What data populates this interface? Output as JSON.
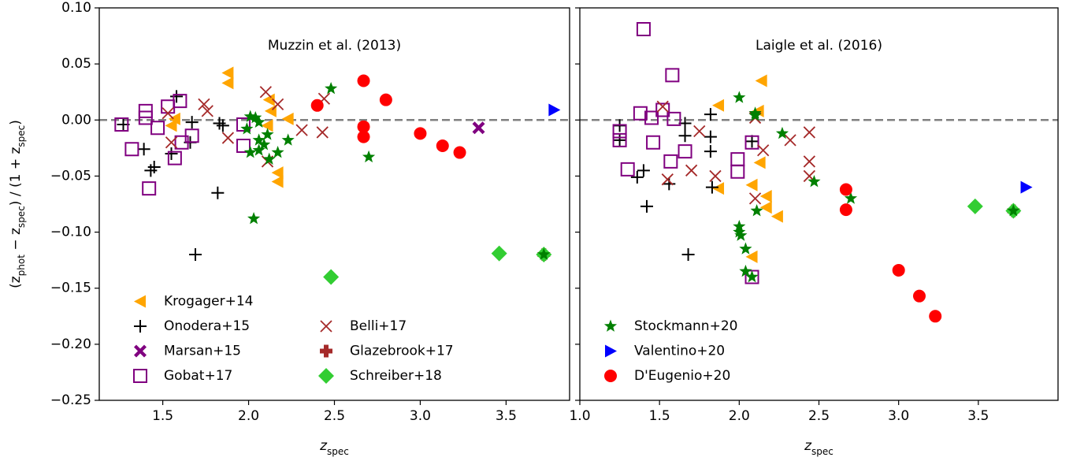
{
  "chart_data": [
    {
      "type": "scatter",
      "title": "Muzzin et al. (2013)",
      "xlabel": [
        "z",
        "spec"
      ],
      "ylabel": [
        "(z",
        "phot",
        " − z",
        "spec",
        ") / (1 + z",
        "spec",
        ")"
      ],
      "xlim": [
        1.13,
        3.87
      ],
      "ylim": [
        -0.25,
        0.1
      ],
      "xticks": [
        {
          "value": 1.5,
          "label": "1.5"
        },
        {
          "value": 2.0,
          "label": "2.0"
        },
        {
          "value": 2.5,
          "label": "2.5"
        },
        {
          "value": 3.0,
          "label": "3.0"
        },
        {
          "value": 3.5,
          "label": "3.5"
        }
      ],
      "yticks": [
        {
          "value": 0.1,
          "label": "0.10"
        },
        {
          "value": 0.05,
          "label": "0.05"
        },
        {
          "value": 0.0,
          "label": "0.00"
        },
        {
          "value": -0.05,
          "label": "−0.05"
        },
        {
          "value": -0.1,
          "label": "−0.10"
        },
        {
          "value": -0.15,
          "label": "−0.15"
        },
        {
          "value": -0.2,
          "label": "−0.20"
        },
        {
          "value": -0.25,
          "label": "−0.25"
        }
      ],
      "hline": 0.0,
      "legend": {
        "loc": "lower left",
        "ncol": 2
      },
      "series": [
        {
          "name": "Krogager+14",
          "color": "#ffa500",
          "marker": "<",
          "filled": true,
          "x": [
            1.88,
            1.88,
            2.12,
            2.13,
            2.17,
            2.17,
            2.23,
            1.57,
            2.11,
            1.55
          ],
          "values": [
            0.042,
            0.033,
            0.018,
            0.008,
            -0.047,
            -0.055,
            0.001,
            0.001,
            -0.005,
            -0.005
          ]
        },
        {
          "name": "Onodera+15",
          "color": "#000000",
          "marker": "+",
          "filled": true,
          "x": [
            1.27,
            1.39,
            1.45,
            1.58,
            1.67,
            1.66,
            1.82,
            1.69,
            1.83,
            1.85,
            1.55,
            1.43
          ],
          "values": [
            -0.004,
            -0.026,
            -0.042,
            0.021,
            -0.002,
            -0.02,
            -0.065,
            -0.12,
            -0.003,
            -0.005,
            -0.03,
            -0.045
          ]
        },
        {
          "name": "Marsan+15",
          "color": "#800080",
          "marker": "X",
          "filled": true,
          "x": [
            3.34
          ],
          "values": [
            -0.007
          ]
        },
        {
          "name": "Gobat+17",
          "color": "#800080",
          "marker": "s",
          "filled": false,
          "x": [
            1.32,
            1.4,
            1.42,
            1.53,
            1.6,
            1.57,
            1.67,
            1.97,
            1.97,
            1.4,
            1.47,
            1.61,
            1.26
          ],
          "values": [
            -0.026,
            0.008,
            -0.061,
            0.012,
            0.017,
            -0.034,
            -0.014,
            -0.004,
            -0.023,
            0.002,
            -0.007,
            -0.02,
            -0.004
          ]
        },
        {
          "name": "Belli+17",
          "color": "#a52a2a",
          "marker": "x",
          "filled": true,
          "x": [
            1.74,
            1.76,
            1.88,
            2.1,
            2.17,
            2.31,
            2.44,
            2.43,
            2.11,
            1.55,
            1.53
          ],
          "values": [
            0.014,
            0.008,
            -0.016,
            0.025,
            0.014,
            -0.009,
            0.019,
            -0.011,
            -0.037,
            -0.02,
            0.006
          ]
        },
        {
          "name": "Glazebrook+17",
          "color": "#a52a2a",
          "marker": "P",
          "filled": true,
          "x": [
            3.72
          ],
          "values": [
            -0.12
          ]
        },
        {
          "name": "Schreiber+18",
          "color": "#32cd32",
          "marker": "D",
          "filled": true,
          "x": [
            2.48,
            3.46,
            3.72
          ],
          "values": [
            -0.14,
            -0.119,
            -0.12
          ]
        },
        {
          "color": "#008000",
          "marker": "*",
          "filled": true,
          "x": [
            2.48,
            2.7,
            2.01,
            2.04,
            2.06,
            1.99,
            2.06,
            2.11,
            2.06,
            2.01,
            2.09,
            2.12,
            2.17,
            2.23,
            2.03,
            3.72
          ],
          "values": [
            0.028,
            -0.033,
            0.003,
            0.002,
            -0.002,
            -0.008,
            -0.018,
            -0.013,
            -0.027,
            -0.029,
            -0.022,
            -0.035,
            -0.029,
            -0.018,
            -0.088,
            -0.12
          ]
        },
        {
          "color": "#0000ff",
          "marker": ">",
          "filled": true,
          "x": [
            3.78
          ],
          "values": [
            0.009
          ]
        },
        {
          "color": "#ff0000",
          "marker": "o",
          "filled": true,
          "x": [
            2.67,
            2.67,
            2.67,
            2.8,
            2.4,
            3.0,
            3.13,
            3.23
          ],
          "values": [
            0.035,
            -0.006,
            -0.015,
            0.018,
            0.013,
            -0.012,
            -0.023,
            -0.029
          ]
        }
      ]
    },
    {
      "type": "scatter",
      "title": "Laigle et al. (2016)",
      "xlabel": [
        "z",
        "spec"
      ],
      "xlim": [
        1.0,
        4.0
      ],
      "ylim": [
        -0.25,
        0.1
      ],
      "xticks": [
        {
          "value": 1.0,
          "label": "1.0"
        },
        {
          "value": 1.5,
          "label": "1.5"
        },
        {
          "value": 2.0,
          "label": "2.0"
        },
        {
          "value": 2.5,
          "label": "2.5"
        },
        {
          "value": 3.0,
          "label": "3.0"
        },
        {
          "value": 3.5,
          "label": "3.5"
        }
      ],
      "hline": 0.0,
      "legend": {
        "loc": "lower left",
        "ncol": 1
      },
      "series": [
        {
          "color": "#ffa500",
          "marker": "<",
          "filled": true,
          "x": [
            1.87,
            2.14,
            2.12,
            2.13,
            2.08,
            2.17,
            2.17,
            2.24,
            1.87,
            2.08
          ],
          "values": [
            0.013,
            0.035,
            0.008,
            -0.038,
            -0.058,
            -0.068,
            -0.078,
            -0.086,
            -0.061,
            -0.122
          ]
        },
        {
          "color": "#000000",
          "marker": "+",
          "filled": true,
          "x": [
            1.25,
            1.25,
            1.36,
            1.4,
            1.42,
            1.56,
            1.66,
            1.66,
            1.68,
            1.82,
            1.82,
            1.82,
            1.83,
            2.08
          ],
          "values": [
            -0.005,
            -0.018,
            -0.051,
            -0.045,
            -0.077,
            -0.057,
            -0.003,
            -0.014,
            -0.12,
            0.005,
            -0.015,
            -0.028,
            -0.06,
            -0.019
          ]
        },
        {
          "color": "#800080",
          "marker": "s",
          "filled": false,
          "x": [
            1.4,
            1.58,
            1.25,
            1.25,
            1.3,
            1.38,
            1.45,
            1.46,
            1.52,
            1.57,
            1.59,
            1.66,
            1.99,
            1.99,
            2.08,
            2.08
          ],
          "values": [
            0.081,
            0.04,
            -0.01,
            -0.018,
            -0.044,
            0.006,
            0.002,
            -0.02,
            0.009,
            -0.037,
            0.001,
            -0.028,
            -0.035,
            -0.046,
            -0.14,
            -0.02
          ]
        },
        {
          "color": "#a52a2a",
          "marker": "x",
          "filled": true,
          "x": [
            1.52,
            1.55,
            1.7,
            1.75,
            1.85,
            2.1,
            2.15,
            2.32,
            2.44,
            2.44,
            2.44,
            2.1
          ],
          "values": [
            0.012,
            -0.053,
            -0.045,
            -0.01,
            -0.05,
            -0.07,
            -0.027,
            -0.018,
            -0.011,
            -0.037,
            -0.05,
            0.002
          ]
        },
        {
          "color": "#a52a2a",
          "marker": "P",
          "filled": true,
          "x": [
            3.72
          ],
          "values": [
            -0.081
          ]
        },
        {
          "color": "#32cd32",
          "marker": "D",
          "filled": true,
          "x": [
            3.48,
            3.72
          ],
          "values": [
            -0.077,
            -0.081
          ]
        },
        {
          "name": "Stockmann+20",
          "color": "#008000",
          "marker": "*",
          "filled": true,
          "x": [
            2.0,
            2.1,
            2.1,
            2.27,
            2.47,
            2.7,
            2.11,
            2.0,
            2.0,
            2.01,
            2.04,
            2.04,
            2.08,
            3.72
          ],
          "values": [
            0.02,
            0.006,
            0.004,
            -0.012,
            -0.055,
            -0.07,
            -0.081,
            -0.095,
            -0.1,
            -0.103,
            -0.115,
            -0.135,
            -0.14,
            -0.081
          ]
        },
        {
          "name": "Valentino+20",
          "color": "#0000ff",
          "marker": ">",
          "filled": true,
          "x": [
            3.8
          ],
          "values": [
            -0.06
          ]
        },
        {
          "name": "D'Eugenio+20",
          "color": "#ff0000",
          "marker": "o",
          "filled": true,
          "x": [
            2.67,
            2.67,
            3.0,
            3.13,
            3.23
          ],
          "values": [
            -0.062,
            -0.08,
            -0.134,
            -0.157,
            -0.175
          ]
        }
      ]
    }
  ]
}
